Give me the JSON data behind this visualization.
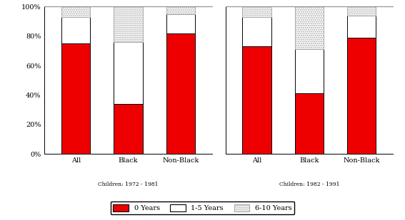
{
  "groups": [
    "All",
    "Black",
    "Non-Black"
  ],
  "cohort1_label": "Children: 1972 - 1981",
  "cohort2_label": "Children: 1982 - 1991",
  "cohort1": {
    "zero_years": [
      75,
      34,
      82
    ],
    "one_five": [
      18,
      42,
      13
    ],
    "six_ten": [
      7,
      24,
      5
    ]
  },
  "cohort2": {
    "zero_years": [
      73,
      41,
      79
    ],
    "one_five": [
      20,
      30,
      15
    ],
    "six_ten": [
      7,
      29,
      6
    ]
  },
  "color_red": "#ee0000",
  "color_white": "#ffffff",
  "color_hatch": "#aaaaaa",
  "bar_width": 0.55,
  "yticks": [
    0,
    20,
    40,
    60,
    80,
    100
  ],
  "ylabels": [
    "0%",
    "20%",
    "40%",
    "60%",
    "80%",
    "100%"
  ],
  "legend_labels": [
    "0 Years",
    "1-5 Years",
    "6-10 Years"
  ],
  "background_color": "#ffffff",
  "edgecolor": "#000000"
}
